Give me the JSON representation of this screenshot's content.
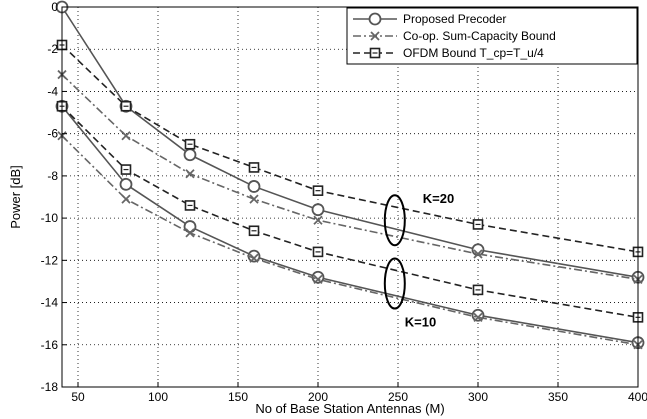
{
  "chart_data": {
    "type": "line",
    "title": "",
    "xlabel": "No of Base Station Antennas (M)",
    "ylabel": "Power [dB]",
    "xlim": [
      40,
      400
    ],
    "ylim": [
      -18,
      0
    ],
    "xticks": [
      50,
      100,
      150,
      200,
      250,
      300,
      350,
      400
    ],
    "yticks": [
      0,
      -2,
      -4,
      -6,
      -8,
      -10,
      -12,
      -14,
      -16,
      -18
    ],
    "grid": true,
    "legend_position": "top-right",
    "legend": [
      {
        "label": "Proposed Precoder",
        "style": "solid",
        "marker": "circle",
        "color": "#555555"
      },
      {
        "label": "Co-op. Sum-Capacity Bound",
        "style": "dashdot",
        "marker": "x",
        "color": "#666666"
      },
      {
        "label": "OFDM Bound T_cp=T_u/4",
        "style": "dashed",
        "marker": "square",
        "color": "#222222"
      }
    ],
    "series": [
      {
        "label": "Proposed Precoder",
        "group": "K=20",
        "style": "solid",
        "marker": "circle",
        "x": [
          40,
          80,
          120,
          160,
          200,
          300,
          400
        ],
        "y": [
          0.0,
          -4.7,
          -7.0,
          -8.5,
          -9.6,
          -11.5,
          -12.8
        ]
      },
      {
        "label": "Co-op. Sum-Capacity Bound",
        "group": "K=20",
        "style": "dashdot",
        "marker": "x",
        "x": [
          40,
          80,
          120,
          160,
          200,
          300,
          400
        ],
        "y": [
          -3.2,
          -6.1,
          -7.9,
          -9.1,
          -10.1,
          -11.7,
          -12.9
        ]
      },
      {
        "label": "OFDM Bound T_cp=T_u/4",
        "group": "K=20",
        "style": "dashed",
        "marker": "square",
        "x": [
          40,
          80,
          120,
          160,
          200,
          300,
          400
        ],
        "y": [
          -1.8,
          -4.7,
          -6.5,
          -7.6,
          -8.7,
          -10.3,
          -11.6
        ]
      },
      {
        "label": "Proposed Precoder",
        "group": "K=10",
        "style": "solid",
        "marker": "circle",
        "x": [
          40,
          80,
          120,
          160,
          200,
          300,
          400
        ],
        "y": [
          -4.7,
          -8.4,
          -10.4,
          -11.8,
          -12.8,
          -14.6,
          -15.9
        ]
      },
      {
        "label": "Co-op. Sum-Capacity Bound",
        "group": "K=10",
        "style": "dashdot",
        "marker": "x",
        "x": [
          40,
          80,
          120,
          160,
          200,
          300,
          400
        ],
        "y": [
          -6.1,
          -9.1,
          -10.7,
          -11.9,
          -12.9,
          -14.7,
          -16.0
        ]
      },
      {
        "label": "OFDM Bound T_cp=T_u/4",
        "group": "K=10",
        "style": "dashed",
        "marker": "square",
        "x": [
          40,
          80,
          120,
          160,
          200,
          300,
          400
        ],
        "y": [
          -4.7,
          -7.7,
          -9.4,
          -10.6,
          -11.6,
          -13.4,
          -14.7
        ]
      }
    ],
    "annotations": [
      {
        "text": "K=20",
        "ellipse_center": [
          248,
          -10.1
        ]
      },
      {
        "text": "K=10",
        "ellipse_center": [
          248,
          -13.1
        ]
      }
    ]
  }
}
